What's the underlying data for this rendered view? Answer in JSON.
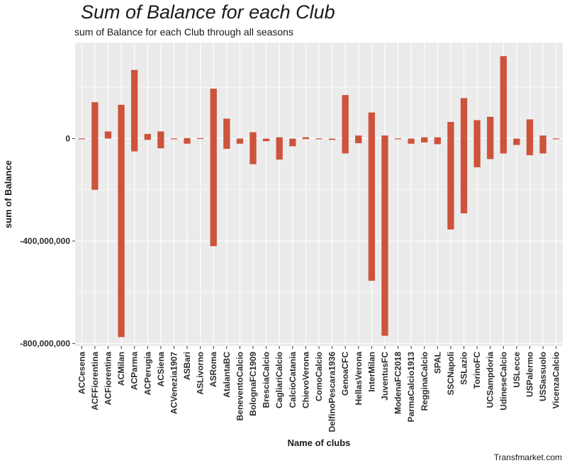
{
  "caption": "Transfmarket.com",
  "colors": {
    "bar": "#cd533b",
    "panel": "#ebebeb",
    "grid": "#ffffff"
  },
  "chart_data": {
    "type": "bar",
    "title": "Sum of Balance for each Club",
    "subtitle": "sum of Balance for each Club through all seasons",
    "xlabel": "Name of clubs",
    "ylabel": "sum of Balance",
    "ylim": [
      -810000000,
      375000000
    ],
    "yticks": [
      0,
      -400000000,
      -800000000
    ],
    "ytick_labels": [
      "0",
      "-400,000,000",
      "-800,000,000"
    ],
    "grid": true,
    "categories": [
      "ACCesena",
      "ACFFiorentina",
      "ACFiorentina",
      "ACMilan",
      "ACParma",
      "ACPerugia",
      "ACSiena",
      "ACVenezia1907",
      "ASBari",
      "ASLivorno",
      "ASRoma",
      "AtalantaBC",
      "BeneventoCalcio",
      "BolognaFC1909",
      "BresciaCalcio",
      "CagliariCalcio",
      "CalcioCatania",
      "ChievoVerona",
      "ComoCalcio",
      "DelfinoPescara1936",
      "GenoaCFC",
      "HellasVerona",
      "InterMilan",
      "JuventusFC",
      "ModenaFC2018",
      "ParmaCalcio1913",
      "RegginaCalcio",
      "SPAL",
      "SSCNapoli",
      "SSLazio",
      "TorinoFC",
      "UCSampdoria",
      "UdineseCalcio",
      "USLecce",
      "USPalermo",
      "USSassuolo",
      "VicenzaCalcio"
    ],
    "series": [
      {
        "low": [
          -2000000,
          -200000000,
          0,
          -775000000,
          -50000000,
          -5000000,
          -38000000,
          -2000000,
          -20000000,
          0,
          -420000000,
          -40000000,
          -20000000,
          -100000000,
          -10000000,
          -82000000,
          -30000000,
          -2000000,
          -2000000,
          -5000000,
          -58000000,
          -18000000,
          -555000000,
          -770000000,
          -2000000,
          -20000000,
          -15000000,
          -22000000,
          -355000000,
          -292000000,
          -112000000,
          -80000000,
          -58000000,
          -25000000,
          -65000000,
          -58000000,
          -2000000
        ],
        "high": [
          0,
          142000000,
          28000000,
          132000000,
          268000000,
          18000000,
          28000000,
          0,
          2000000,
          0,
          195000000,
          78000000,
          0,
          25000000,
          0,
          5000000,
          0,
          5000000,
          0,
          0,
          170000000,
          12000000,
          102000000,
          12000000,
          0,
          0,
          5000000,
          5000000,
          65000000,
          158000000,
          72000000,
          85000000,
          322000000,
          0,
          75000000,
          12000000,
          0
        ]
      }
    ]
  }
}
